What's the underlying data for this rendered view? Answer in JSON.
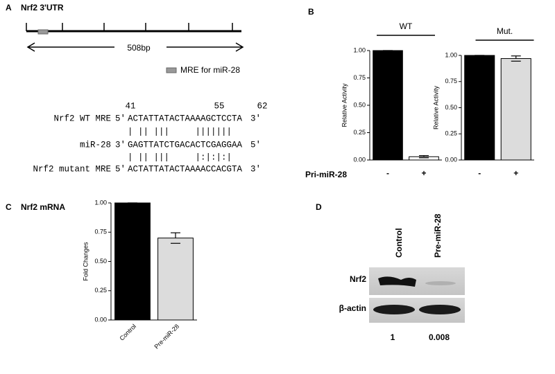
{
  "panel_a": {
    "letter": "A",
    "title": "Nrf2 3'UTR",
    "length_label": "508bp",
    "legend": "MRE for miR-28",
    "positions": [
      "41",
      "55",
      "62"
    ],
    "rows": [
      {
        "name": "Nrf2 WT MRE",
        "left": "5'",
        "seq": "ACTATTATACTAAAAGCTCCTA",
        "right": "3'"
      },
      {
        "name": "miR-28",
        "left": "3'",
        "seq": "GAGTTATCTGACACTCGAGGAA",
        "right": "5'"
      },
      {
        "name": "Nrf2 mutant MRE",
        "left": "5'",
        "seq": "ACTATTATACTAAAACCACGTA",
        "right": "3'"
      }
    ],
    "pairings": [
      "| || |||     |||||||",
      "| || |||     |:|:|:|"
    ]
  },
  "panel_b": {
    "letter": "B",
    "x_label": "Pri-miR-28",
    "charts": [
      {
        "type": "bar",
        "title": "WT",
        "ylabel": "Relative Activity",
        "categories": [
          "-",
          "+"
        ],
        "values": [
          1.0,
          0.03
        ],
        "errors": [
          0,
          0.01
        ],
        "colors": [
          "#000000",
          "#ffffff"
        ],
        "ylim": [
          0,
          1
        ],
        "yticks": [
          {
            "value": 0,
            "label": "0.00"
          },
          {
            "value": 0.25,
            "label": "0.25"
          },
          {
            "value": 0.5,
            "label": "0.50"
          },
          {
            "value": 0.75,
            "label": "0.75"
          },
          {
            "value": 1,
            "label": "1.00"
          }
        ]
      },
      {
        "type": "bar",
        "title": "Mut.",
        "ylabel": "Relative Activity",
        "categories": [
          "-",
          "+"
        ],
        "values": [
          1.0,
          0.97
        ],
        "errors": [
          0,
          0.025
        ],
        "colors": [
          "#000000",
          "#dcdcdc"
        ],
        "ylim": [
          0,
          1
        ],
        "yticks": [
          {
            "value": 0,
            "label": "0.00"
          },
          {
            "value": 0.25,
            "label": "0.25"
          },
          {
            "value": 0.5,
            "label": "0.50"
          },
          {
            "value": 0.75,
            "label": "0.75"
          },
          {
            "value": 1,
            "label": "1.00"
          }
        ]
      }
    ]
  },
  "panel_c": {
    "letter": "C",
    "chart": {
      "type": "bar",
      "title": "Nrf2 mRNA",
      "ylabel": "Fold Changes",
      "categories": [
        "Control",
        "Pre-miR-28"
      ],
      "values": [
        1.0,
        0.7
      ],
      "errors": [
        0,
        0.045
      ],
      "colors": [
        "#000000",
        "#dcdcdc"
      ],
      "ylim": [
        0,
        1
      ],
      "yticks": [
        {
          "value": 0,
          "label": "0.00"
        },
        {
          "value": 0.25,
          "label": "0.25"
        },
        {
          "value": 0.5,
          "label": "0.50"
        },
        {
          "value": 0.75,
          "label": "0.75"
        },
        {
          "value": 1,
          "label": "1.00"
        }
      ]
    }
  },
  "panel_d": {
    "letter": "D",
    "lanes": [
      "Control",
      "Pre-miR-28"
    ],
    "bands": [
      "Nrf2",
      "β-actin"
    ],
    "quantities": [
      "1",
      "0.008"
    ]
  }
}
